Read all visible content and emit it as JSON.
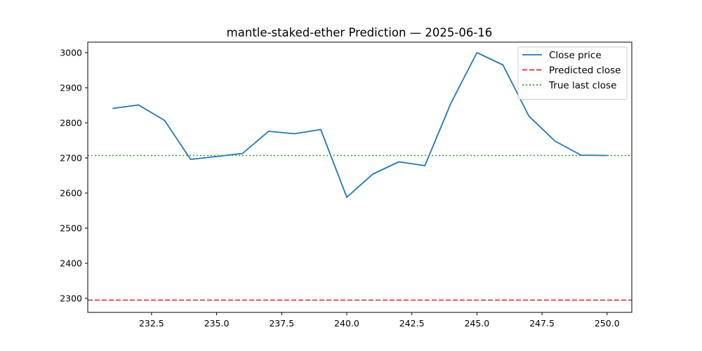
{
  "chart_data": {
    "type": "line",
    "title": "mantle-staked-ether Prediction — 2025-06-16",
    "xlabel": "",
    "ylabel": "",
    "xlim": [
      230.05,
      250.95
    ],
    "ylim": [
      2260,
      3030
    ],
    "x_ticks": [
      232.5,
      235.0,
      237.5,
      240.0,
      242.5,
      245.0,
      247.5,
      250.0
    ],
    "x_tick_labels": [
      "232.5",
      "235.0",
      "237.5",
      "240.0",
      "242.5",
      "245.0",
      "247.5",
      "250.0"
    ],
    "y_ticks": [
      2300,
      2400,
      2500,
      2600,
      2700,
      2800,
      2900,
      3000
    ],
    "y_tick_labels": [
      "2300",
      "2400",
      "2500",
      "2600",
      "2700",
      "2800",
      "2900",
      "3000"
    ],
    "grid": false,
    "legend_position": "top-right",
    "series": [
      {
        "name": "Close price",
        "kind": "line",
        "color": "#1f77b4",
        "x": [
          231,
          232,
          233,
          234,
          235,
          236,
          237,
          238,
          239,
          240,
          241,
          242,
          243,
          244,
          245,
          246,
          247,
          248,
          249,
          250
        ],
        "values": [
          2841,
          2851,
          2807,
          2696,
          2704,
          2713,
          2776,
          2769,
          2781,
          2588,
          2654,
          2689,
          2678,
          2856,
          3000,
          2965,
          2819,
          2748,
          2708,
          2707
        ]
      },
      {
        "name": "Predicted close",
        "kind": "hline",
        "style": "dashed",
        "color": "#d62728",
        "value": 2295
      },
      {
        "name": "True last close",
        "kind": "hline",
        "style": "dotted",
        "color": "#2ca02c",
        "value": 2707
      }
    ]
  }
}
